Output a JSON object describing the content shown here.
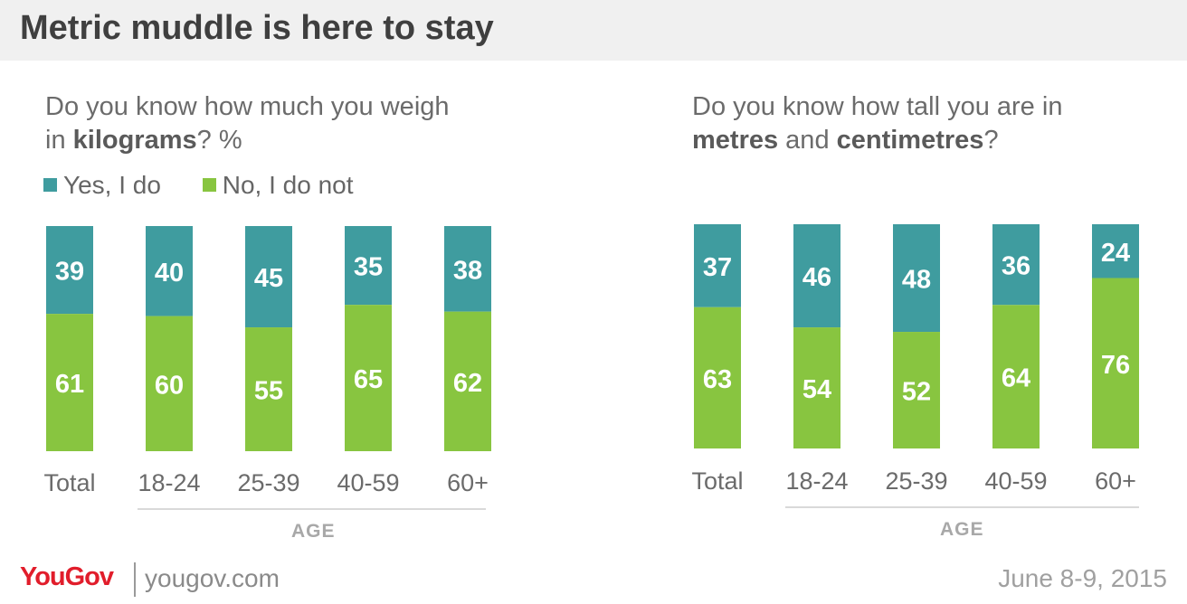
{
  "title": "Metric muddle is here to stay",
  "colors": {
    "yes": "#3f9c9f",
    "no": "#88c540",
    "logo": "#e11d2b"
  },
  "legend": {
    "yes": "Yes, I do",
    "no": "No, I do not"
  },
  "left_question": {
    "line1": "Do you know how much you weigh",
    "line2_prefix": "in ",
    "line2_bold": "kilograms",
    "line2_suffix": "? %"
  },
  "right_question": {
    "line1": "Do you know how tall you are in",
    "line2_bold1": "metres",
    "line2_mid": " and ",
    "line2_bold2": "centimetres",
    "line2_suffix": "?"
  },
  "age_label": "AGE",
  "footer": {
    "logo": "YouGov",
    "site": "yougov.com",
    "date": "June 8-9, 2015"
  },
  "chart_data": [
    {
      "type": "bar",
      "stacked": true,
      "categories": [
        "Total",
        "18-24",
        "25-39",
        "40-59",
        "60+"
      ],
      "series": [
        {
          "name": "Yes, I do",
          "values": [
            39,
            40,
            45,
            35,
            38
          ]
        },
        {
          "name": "No, I do not",
          "values": [
            61,
            60,
            55,
            65,
            62
          ]
        }
      ],
      "xlabel": "AGE",
      "ylim": [
        0,
        100
      ]
    },
    {
      "type": "bar",
      "stacked": true,
      "categories": [
        "Total",
        "18-24",
        "25-39",
        "40-59",
        "60+"
      ],
      "series": [
        {
          "name": "Yes, I do",
          "values": [
            37,
            46,
            48,
            36,
            24
          ]
        },
        {
          "name": "No, I do not",
          "values": [
            63,
            54,
            52,
            64,
            76
          ]
        }
      ],
      "xlabel": "AGE",
      "ylim": [
        0,
        100
      ]
    }
  ]
}
